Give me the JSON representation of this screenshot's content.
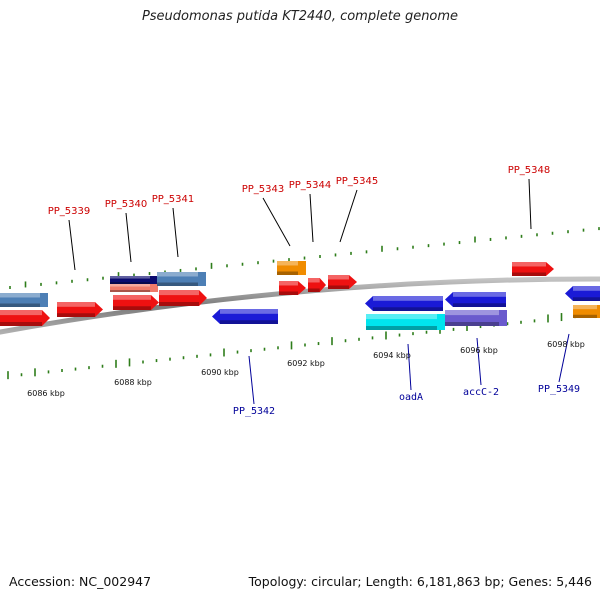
{
  "title": "Pseudomonas putida KT2440, complete genome",
  "footer": {
    "accession": "Accession: NC_002947",
    "summary": "Topology: circular; Length: 6,181,863 bp; Genes: 5,446"
  },
  "colors": {
    "label_top": "#cc0000",
    "label_bottom": "#000099",
    "backbone": "#8a8a8a",
    "tick": "#2e7d1a",
    "red": "#ee1111",
    "blue": "#1a1ad6",
    "steel": "#4d7fb5",
    "orange": "#f08c00",
    "cyan": "#00e5ee",
    "slate": "#6a5acd",
    "navy": "#0a0a6e",
    "salmon": "#f07a6a"
  },
  "scale": {
    "unit": "kbp",
    "labels": [
      {
        "text": "6086 kbp"
      },
      {
        "text": "6088 kbp"
      },
      {
        "text": "6090 kbp"
      },
      {
        "text": "6092 kbp"
      },
      {
        "text": "6094 kbp"
      },
      {
        "text": "6096 kbp"
      },
      {
        "text": "6098 kbp"
      }
    ]
  },
  "top_labels": [
    {
      "text": "PP_5339"
    },
    {
      "text": "PP_5340"
    },
    {
      "text": "PP_5341"
    },
    {
      "text": "PP_5343"
    },
    {
      "text": "PP_5344"
    },
    {
      "text": "PP_5345"
    },
    {
      "text": "PP_5348"
    }
  ],
  "bottom_labels": [
    {
      "text": "PP_5342"
    },
    {
      "text": "oadA"
    },
    {
      "text": "accC-2"
    },
    {
      "text": "PP_5349"
    }
  ]
}
